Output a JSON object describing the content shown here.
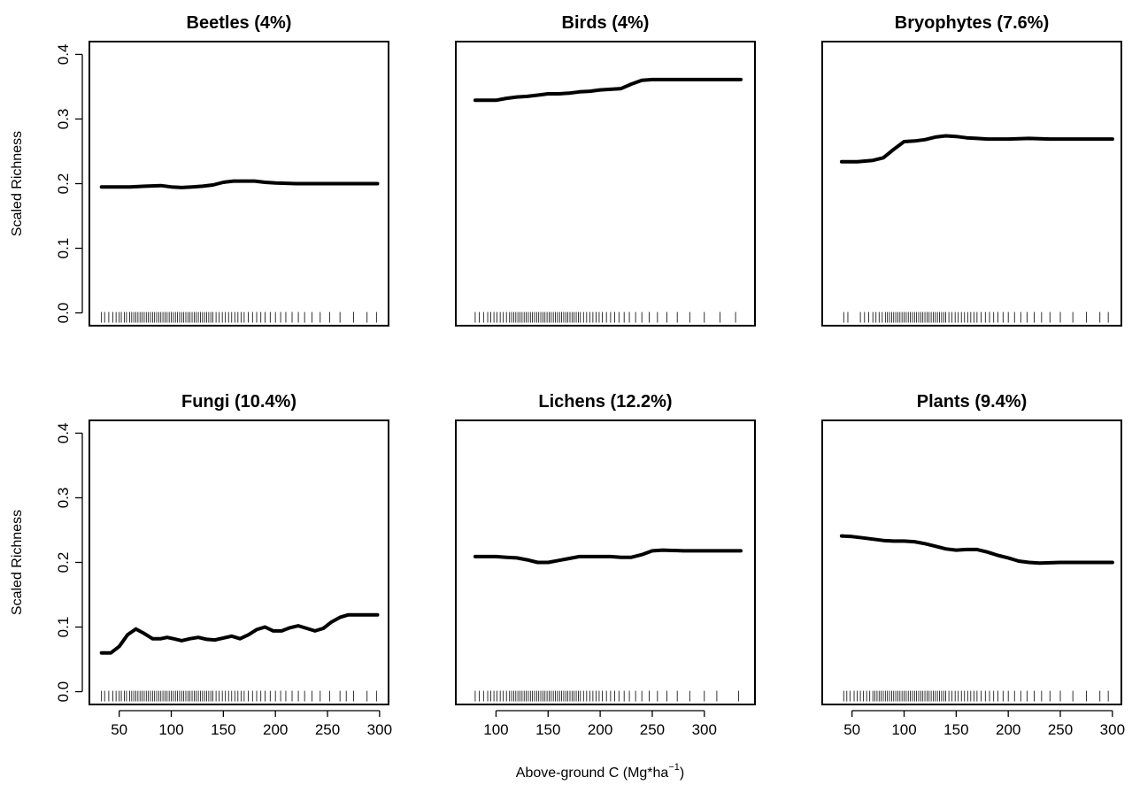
{
  "figure": {
    "ylabel": "Scaled Richness",
    "xlabel_main": "Above-ground C (Mg*ha",
    "xlabel_sup": "−1",
    "xlabel_close": ")"
  },
  "chart_data": [
    {
      "type": "line",
      "title": "Beetles (4%)",
      "xlim": [
        30,
        300
      ],
      "ylim": [
        0,
        0.4
      ],
      "yticks": [
        0,
        0.1,
        0.2,
        0.3,
        0.4
      ],
      "ytick_labels": [
        "0.0",
        "0.1",
        "0.2",
        "0.3",
        "0.4"
      ],
      "xticks": [
        50,
        100,
        150,
        200,
        250,
        300
      ],
      "xticks_labeled": false,
      "ylabel_shown": true,
      "yaxis_shown": true,
      "x": [
        33,
        60,
        75,
        90,
        100,
        110,
        120,
        130,
        140,
        150,
        160,
        170,
        180,
        190,
        200,
        220,
        250,
        280,
        298
      ],
      "y": [
        0.195,
        0.195,
        0.196,
        0.197,
        0.195,
        0.194,
        0.195,
        0.196,
        0.198,
        0.202,
        0.204,
        0.204,
        0.204,
        0.202,
        0.201,
        0.2,
        0.2,
        0.2,
        0.2
      ],
      "rug": [
        33,
        36,
        40,
        44,
        47,
        50,
        52,
        55,
        57,
        60,
        62,
        64,
        66,
        68,
        70,
        72,
        74,
        76,
        78,
        80,
        82,
        84,
        86,
        88,
        90,
        92,
        94,
        96,
        98,
        100,
        102,
        104,
        106,
        108,
        110,
        112,
        114,
        116,
        118,
        120,
        122,
        124,
        126,
        128,
        130,
        132,
        134,
        136,
        138,
        140,
        143,
        146,
        149,
        152,
        155,
        158,
        161,
        164,
        167,
        170,
        174,
        178,
        182,
        186,
        190,
        195,
        200,
        205,
        210,
        216,
        222,
        228,
        235,
        243,
        252,
        262,
        275,
        288,
        297
      ]
    },
    {
      "type": "line",
      "title": "Birds (4%)",
      "xlim": [
        70,
        340
      ],
      "ylim": [
        0,
        0.4
      ],
      "yticks": [
        0,
        0.1,
        0.2,
        0.3,
        0.4
      ],
      "ytick_labels": [
        "0.0",
        "0.1",
        "0.2",
        "0.3",
        "0.4"
      ],
      "xticks": [
        100,
        150,
        200,
        250,
        300
      ],
      "xticks_labeled": false,
      "ylabel_shown": false,
      "yaxis_shown": false,
      "x": [
        80,
        90,
        100,
        110,
        120,
        130,
        140,
        150,
        160,
        170,
        180,
        190,
        200,
        210,
        220,
        230,
        240,
        250,
        260,
        280,
        300,
        320,
        335
      ],
      "y": [
        0.329,
        0.329,
        0.329,
        0.332,
        0.334,
        0.335,
        0.337,
        0.339,
        0.339,
        0.34,
        0.342,
        0.343,
        0.345,
        0.346,
        0.347,
        0.354,
        0.36,
        0.361,
        0.361,
        0.361,
        0.361,
        0.361,
        0.361
      ],
      "rug": [
        80,
        84,
        88,
        92,
        95,
        98,
        101,
        104,
        107,
        110,
        113,
        115,
        117,
        119,
        121,
        123,
        125,
        127,
        129,
        131,
        133,
        135,
        137,
        139,
        141,
        143,
        145,
        147,
        149,
        151,
        153,
        155,
        157,
        159,
        161,
        163,
        165,
        167,
        169,
        171,
        173,
        175,
        177,
        179,
        181,
        184,
        187,
        190,
        193,
        196,
        199,
        202,
        206,
        210,
        214,
        218,
        223,
        228,
        234,
        240,
        247,
        255,
        264,
        274,
        286,
        300,
        315,
        330
      ]
    },
    {
      "type": "line",
      "title": "Bryophytes (7.6%)",
      "xlim": [
        30,
        300
      ],
      "ylim": [
        0,
        0.4
      ],
      "yticks": [
        0,
        0.1,
        0.2,
        0.3,
        0.4
      ],
      "ytick_labels": [
        "0.0",
        "0.1",
        "0.2",
        "0.3",
        "0.4"
      ],
      "xticks": [
        50,
        100,
        150,
        200,
        250,
        300
      ],
      "xticks_labeled": false,
      "ylabel_shown": false,
      "yaxis_shown": false,
      "x": [
        40,
        55,
        70,
        80,
        90,
        100,
        110,
        120,
        130,
        140,
        150,
        160,
        170,
        180,
        200,
        220,
        240,
        260,
        280,
        300
      ],
      "y": [
        0.234,
        0.234,
        0.236,
        0.24,
        0.253,
        0.265,
        0.266,
        0.268,
        0.272,
        0.274,
        0.273,
        0.271,
        0.27,
        0.269,
        0.269,
        0.27,
        0.269,
        0.269,
        0.269,
        0.269
      ],
      "rug": [
        42,
        46,
        58,
        62,
        66,
        70,
        73,
        76,
        79,
        82,
        84,
        86,
        88,
        90,
        92,
        94,
        96,
        98,
        100,
        102,
        104,
        106,
        108,
        110,
        112,
        114,
        116,
        118,
        120,
        122,
        124,
        126,
        128,
        130,
        132,
        134,
        136,
        138,
        140,
        143,
        146,
        149,
        152,
        155,
        158,
        161,
        164,
        167,
        170,
        174,
        178,
        182,
        186,
        190,
        195,
        200,
        206,
        212,
        218,
        225,
        232,
        240,
        250,
        262,
        275,
        288,
        296
      ]
    },
    {
      "type": "line",
      "title": "Fungi (10.4%)",
      "xlim": [
        30,
        300
      ],
      "ylim": [
        0,
        0.4
      ],
      "yticks": [
        0,
        0.1,
        0.2,
        0.3,
        0.4
      ],
      "ytick_labels": [
        "0.0",
        "0.1",
        "0.2",
        "0.3",
        "0.4"
      ],
      "xticks": [
        50,
        100,
        150,
        200,
        250,
        300
      ],
      "xticks_labeled": true,
      "ylabel_shown": true,
      "yaxis_shown": true,
      "x": [
        33,
        42,
        50,
        58,
        66,
        74,
        82,
        90,
        96,
        102,
        110,
        118,
        126,
        134,
        142,
        150,
        158,
        166,
        174,
        182,
        190,
        198,
        206,
        214,
        222,
        230,
        238,
        246,
        254,
        262,
        270,
        280,
        298
      ],
      "y": [
        0.06,
        0.06,
        0.07,
        0.088,
        0.097,
        0.09,
        0.082,
        0.082,
        0.084,
        0.082,
        0.079,
        0.082,
        0.084,
        0.081,
        0.08,
        0.083,
        0.086,
        0.082,
        0.088,
        0.096,
        0.1,
        0.094,
        0.094,
        0.099,
        0.102,
        0.098,
        0.094,
        0.098,
        0.108,
        0.115,
        0.119,
        0.119,
        0.119
      ],
      "rug": [
        33,
        36,
        40,
        44,
        47,
        50,
        52,
        55,
        57,
        60,
        62,
        64,
        66,
        68,
        70,
        72,
        74,
        76,
        78,
        80,
        82,
        84,
        86,
        88,
        90,
        92,
        94,
        96,
        98,
        100,
        102,
        104,
        106,
        108,
        110,
        112,
        114,
        116,
        118,
        120,
        122,
        124,
        126,
        128,
        130,
        132,
        134,
        136,
        138,
        140,
        143,
        146,
        149,
        152,
        155,
        158,
        161,
        164,
        167,
        170,
        174,
        178,
        182,
        186,
        190,
        195,
        200,
        205,
        210,
        216,
        222,
        228,
        235,
        243,
        252,
        262,
        268,
        275,
        288,
        297
      ]
    },
    {
      "type": "line",
      "title": "Lichens (12.2%)",
      "xlim": [
        70,
        340
      ],
      "ylim": [
        0,
        0.4
      ],
      "yticks": [
        0,
        0.1,
        0.2,
        0.3,
        0.4
      ],
      "ytick_labels": [
        "0.0",
        "0.1",
        "0.2",
        "0.3",
        "0.4"
      ],
      "xticks": [
        100,
        150,
        200,
        250,
        300
      ],
      "xticks_labeled": true,
      "ylabel_shown": false,
      "yaxis_shown": false,
      "x": [
        80,
        100,
        110,
        120,
        130,
        140,
        150,
        160,
        170,
        180,
        190,
        200,
        210,
        220,
        230,
        240,
        250,
        260,
        280,
        300,
        320,
        335
      ],
      "y": [
        0.209,
        0.209,
        0.208,
        0.207,
        0.204,
        0.2,
        0.2,
        0.203,
        0.206,
        0.209,
        0.209,
        0.209,
        0.209,
        0.208,
        0.208,
        0.212,
        0.218,
        0.219,
        0.218,
        0.218,
        0.218,
        0.218
      ],
      "rug": [
        80,
        84,
        88,
        92,
        95,
        98,
        101,
        104,
        107,
        110,
        113,
        115,
        117,
        119,
        121,
        123,
        125,
        127,
        129,
        131,
        133,
        135,
        137,
        139,
        141,
        143,
        145,
        147,
        149,
        151,
        153,
        155,
        157,
        159,
        161,
        163,
        165,
        167,
        169,
        171,
        173,
        175,
        177,
        179,
        181,
        184,
        187,
        190,
        193,
        196,
        199,
        202,
        206,
        210,
        214,
        218,
        223,
        228,
        234,
        240,
        247,
        255,
        264,
        274,
        286,
        300,
        312,
        333
      ]
    },
    {
      "type": "line",
      "title": "Plants (9.4%)",
      "xlim": [
        30,
        300
      ],
      "ylim": [
        0,
        0.4
      ],
      "yticks": [
        0,
        0.1,
        0.2,
        0.3,
        0.4
      ],
      "ytick_labels": [
        "0.0",
        "0.1",
        "0.2",
        "0.3",
        "0.4"
      ],
      "xticks": [
        50,
        100,
        150,
        200,
        250,
        300
      ],
      "xticks_labeled": true,
      "ylabel_shown": false,
      "yaxis_shown": false,
      "x": [
        40,
        50,
        60,
        70,
        80,
        90,
        100,
        110,
        120,
        130,
        140,
        150,
        160,
        170,
        180,
        190,
        200,
        210,
        220,
        230,
        250,
        270,
        300
      ],
      "y": [
        0.241,
        0.24,
        0.238,
        0.236,
        0.234,
        0.233,
        0.233,
        0.232,
        0.229,
        0.225,
        0.221,
        0.219,
        0.22,
        0.22,
        0.216,
        0.211,
        0.207,
        0.202,
        0.2,
        0.199,
        0.2,
        0.2,
        0.2
      ],
      "rug": [
        42,
        45,
        48,
        52,
        55,
        58,
        61,
        64,
        67,
        70,
        72,
        74,
        76,
        78,
        80,
        82,
        84,
        86,
        88,
        90,
        92,
        94,
        96,
        98,
        100,
        102,
        104,
        106,
        108,
        110,
        112,
        114,
        116,
        118,
        120,
        122,
        124,
        126,
        128,
        130,
        132,
        134,
        136,
        138,
        140,
        143,
        146,
        149,
        152,
        155,
        158,
        161,
        164,
        167,
        170,
        174,
        178,
        182,
        186,
        190,
        195,
        200,
        206,
        212,
        218,
        225,
        232,
        240,
        250,
        262,
        275,
        288,
        296
      ]
    }
  ]
}
